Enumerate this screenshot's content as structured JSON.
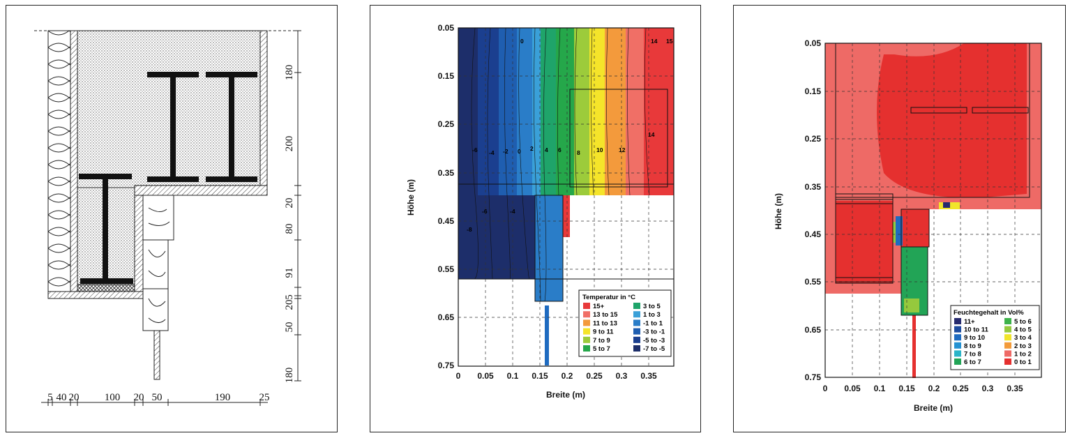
{
  "panel1": {
    "dims_right": [
      "180",
      "200",
      "20",
      "80",
      "91",
      "20",
      "5",
      "50",
      "180"
    ],
    "dims_bottom": [
      "5",
      "40",
      "20",
      "100",
      "20",
      "50",
      "190",
      "25"
    ]
  },
  "panel2": {
    "ylabel": "Höhe (m)",
    "xlabel": "Breite (m)",
    "yticks": [
      "0.05",
      "0.15",
      "0.25",
      "0.35",
      "0.45",
      "0.55",
      "0.65",
      "0.75"
    ],
    "xticks": [
      "0",
      "0.05",
      "0.1",
      "0.15",
      "0.2",
      "0.25",
      "0.3",
      "0.35"
    ],
    "contour_labels": [
      "0",
      "14",
      "15",
      "-6",
      "-4",
      "-2",
      "0",
      "2",
      "4",
      "6",
      "8",
      "10",
      "12",
      "14",
      "-6",
      "-4",
      "-8"
    ],
    "legend": {
      "title": "Temperatur in °C",
      "items": [
        {
          "label": "15+",
          "color": "#e8393a"
        },
        {
          "label": "13 to 15",
          "color": "#f06f66"
        },
        {
          "label": "11 to 13",
          "color": "#f39a3c"
        },
        {
          "label": "9 to 11",
          "color": "#f5e42a"
        },
        {
          "label": "7 to 9",
          "color": "#9ccb3b"
        },
        {
          "label": "5 to 7",
          "color": "#25a74a"
        },
        {
          "label": "3 to 5",
          "color": "#1fa46a"
        },
        {
          "label": "1 to 3",
          "color": "#3aa0d8"
        },
        {
          "label": "-1 to 1",
          "color": "#2a7dc8"
        },
        {
          "label": "-3 to -1",
          "color": "#1f5eb0"
        },
        {
          "label": "-5 to -3",
          "color": "#1b3f8f"
        },
        {
          "label": "-7 to -5",
          "color": "#1d2e6a"
        }
      ]
    }
  },
  "panel3": {
    "ylabel": "Höhe (m)",
    "xlabel": "Breite (m)",
    "yticks": [
      "0.05",
      "0.15",
      "0.25",
      "0.35",
      "0.45",
      "0.55",
      "0.65",
      "0.75"
    ],
    "xticks": [
      "0",
      "0.05",
      "0.1",
      "0.15",
      "0.2",
      "0.25",
      "0.3",
      "0.35"
    ],
    "legend": {
      "title": "Feuchtegehalt in Vol%",
      "items": [
        {
          "label": "11+",
          "color": "#262a6e"
        },
        {
          "label": "10 to 11",
          "color": "#1d4b9e"
        },
        {
          "label": "9 to 10",
          "color": "#1f6bc0"
        },
        {
          "label": "8 to 9",
          "color": "#2491d2"
        },
        {
          "label": "7 to 8",
          "color": "#2bb4c8"
        },
        {
          "label": "6 to 7",
          "color": "#22a456"
        },
        {
          "label": "5 to 6",
          "color": "#3db24a"
        },
        {
          "label": "4 to 5",
          "color": "#95c93d"
        },
        {
          "label": "3 to 4",
          "color": "#f1e52a"
        },
        {
          "label": "2 to 3",
          "color": "#f39b3a"
        },
        {
          "label": "1 to 2",
          "color": "#ee6a66"
        },
        {
          "label": "0 to 1",
          "color": "#e5302f"
        }
      ]
    }
  }
}
